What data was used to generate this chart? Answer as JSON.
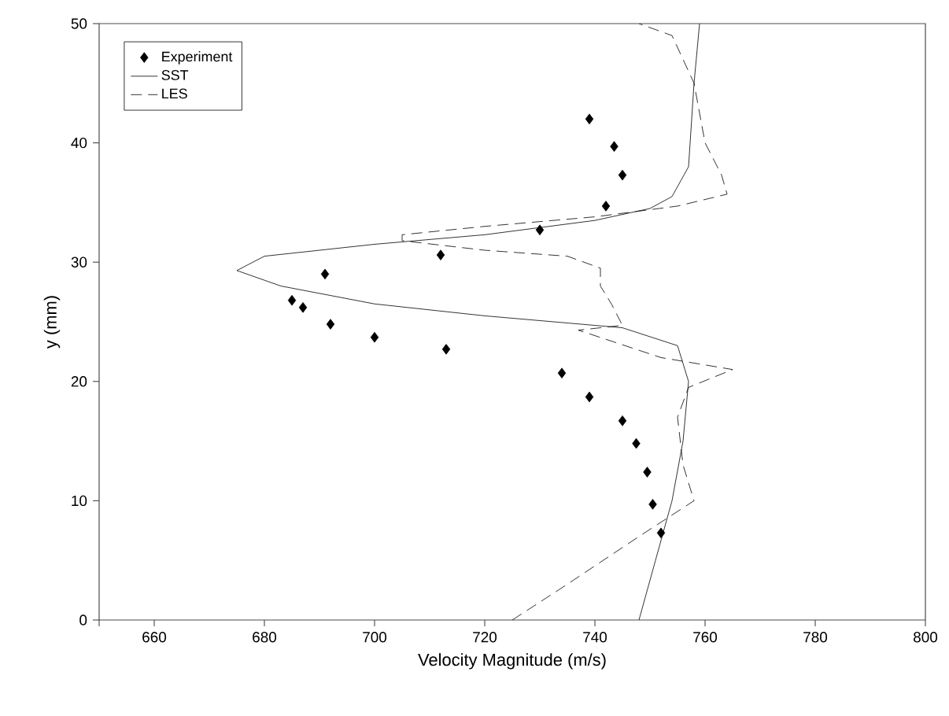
{
  "chart_data": {
    "type": "line",
    "xlabel": "Velocity Magnitude (m/s)",
    "ylabel": "y (mm)",
    "xlim": [
      650,
      800
    ],
    "ylim": [
      0,
      50
    ],
    "xticks": [
      {
        "value": 650,
        "label": null
      },
      660,
      680,
      700,
      720,
      740,
      760,
      780,
      800
    ],
    "yticks": [
      0,
      10,
      20,
      30,
      40,
      50
    ],
    "legend": "top left",
    "grid": false,
    "series": [
      {
        "name": "Experiment",
        "type": "scatter",
        "marker": "diamond",
        "color": "#000000",
        "x": [
          739,
          743.5,
          745,
          742,
          730,
          712,
          691,
          685,
          687,
          692,
          700,
          713,
          734,
          739,
          745,
          747.5,
          749.5,
          750.5,
          752
        ],
        "values": [
          42,
          39.7,
          37.3,
          34.7,
          32.7,
          30.6,
          29,
          26.8,
          26.2,
          24.8,
          23.7,
          22.7,
          20.7,
          18.7,
          16.7,
          14.8,
          12.4,
          9.7,
          7.3
        ]
      },
      {
        "name": "SST",
        "line_style": "solid",
        "color": "#000000",
        "x": [
          748,
          751,
          754,
          756,
          757,
          755,
          745,
          720,
          700,
          683,
          675,
          680,
          700,
          720,
          740,
          750,
          754,
          757,
          758,
          759
        ],
        "values": [
          0,
          5,
          10,
          15,
          20,
          23,
          24.5,
          25.5,
          26.5,
          28,
          29.3,
          30.5,
          31.5,
          32.3,
          33.5,
          34.5,
          35.5,
          38,
          45,
          50
        ]
      },
      {
        "name": "LES",
        "line_style": "dashed",
        "color": "#000000",
        "x": [
          725,
          735,
          748,
          758,
          756,
          755,
          757,
          765,
          752,
          737,
          745,
          743,
          741,
          741,
          735,
          720,
          705,
          705,
          720,
          740,
          755,
          764,
          763,
          760,
          758,
          754,
          748
        ],
        "values": [
          0,
          3,
          7,
          10,
          13,
          17,
          19.5,
          21,
          22,
          24.3,
          24.7,
          26.5,
          28,
          29.5,
          30.5,
          31,
          31.8,
          32.3,
          33,
          33.8,
          34.7,
          35.7,
          37.3,
          40,
          45,
          49,
          50
        ]
      }
    ]
  }
}
